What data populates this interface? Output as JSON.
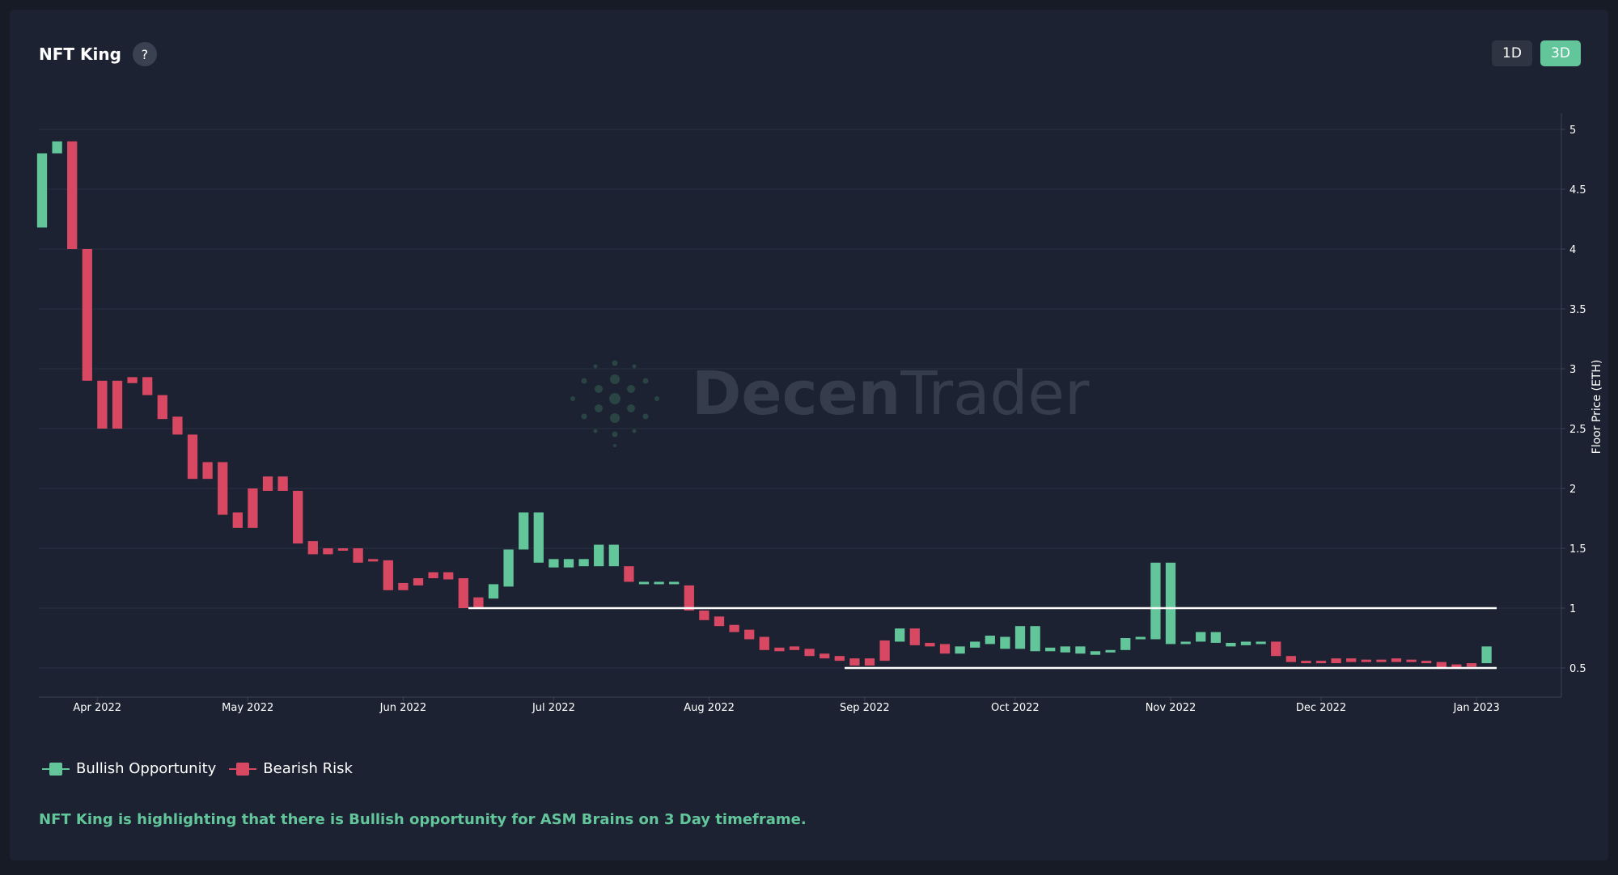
{
  "header": {
    "title": "NFT King",
    "help_icon": "?"
  },
  "timeframes": [
    {
      "label": "1D",
      "active": false
    },
    {
      "label": "3D",
      "active": true
    }
  ],
  "watermark": {
    "text_dark": "Decen",
    "text_light": "Trader"
  },
  "legend": [
    {
      "label": "Bullish Opportunity",
      "color": "#63c69a"
    },
    {
      "label": "Bearish Risk",
      "color": "#d94862"
    }
  ],
  "message": "NFT King is highlighting that there is Bullish opportunity for ASM Brains on 3 Day timeframe.",
  "colors": {
    "bullish": "#63c69a",
    "bearish": "#d94862",
    "level_line": "#ffffff",
    "grid": "#283043"
  },
  "chart_data": {
    "type": "bar",
    "ylabel": "Floor Price (ETH)",
    "ylim": [
      0.25,
      5.2
    ],
    "yticks": [
      0.5,
      1,
      1.5,
      2,
      2.5,
      3,
      3.5,
      4,
      4.5,
      5
    ],
    "ytick_labels": [
      "0.5",
      "1",
      "1.5",
      "2",
      "2.5",
      "3",
      "3.5",
      "4",
      "4.5",
      "5"
    ],
    "x_start": "2022-03-21",
    "x_end": "2023-01-10",
    "month_ticks": [
      {
        "date": "2022-04-01",
        "label": "Apr 2022"
      },
      {
        "date": "2022-05-01",
        "label": "May 2022"
      },
      {
        "date": "2022-06-01",
        "label": "Jun 2022"
      },
      {
        "date": "2022-07-01",
        "label": "Jul 2022"
      },
      {
        "date": "2022-08-01",
        "label": "Aug 2022"
      },
      {
        "date": "2022-09-01",
        "label": "Sep 2022"
      },
      {
        "date": "2022-10-01",
        "label": "Oct 2022"
      },
      {
        "date": "2022-11-01",
        "label": "Nov 2022"
      },
      {
        "date": "2022-12-01",
        "label": "Dec 2022"
      },
      {
        "date": "2023-01-01",
        "label": "Jan 2023"
      }
    ],
    "candles": [
      {
        "date": "2022-03-21",
        "open": 4.18,
        "close": 4.8,
        "signal": "bullish"
      },
      {
        "date": "2022-03-24",
        "open": 4.8,
        "close": 4.9,
        "signal": "bullish"
      },
      {
        "date": "2022-03-27",
        "open": 4.9,
        "close": 4.0,
        "signal": "bearish"
      },
      {
        "date": "2022-03-30",
        "open": 4.0,
        "close": 2.9,
        "signal": "bearish"
      },
      {
        "date": "2022-04-02",
        "open": 2.9,
        "close": 2.5,
        "signal": "bearish"
      },
      {
        "date": "2022-04-05",
        "open": 2.9,
        "close": 2.5,
        "signal": "bearish"
      },
      {
        "date": "2022-04-08",
        "open": 2.93,
        "close": 2.88,
        "signal": "bearish"
      },
      {
        "date": "2022-04-11",
        "open": 2.93,
        "close": 2.78,
        "signal": "bearish"
      },
      {
        "date": "2022-04-14",
        "open": 2.78,
        "close": 2.58,
        "signal": "bearish"
      },
      {
        "date": "2022-04-17",
        "open": 2.6,
        "close": 2.45,
        "signal": "bearish"
      },
      {
        "date": "2022-04-20",
        "open": 2.45,
        "close": 2.08,
        "signal": "bearish"
      },
      {
        "date": "2022-04-23",
        "open": 2.22,
        "close": 2.08,
        "signal": "bearish"
      },
      {
        "date": "2022-04-26",
        "open": 2.22,
        "close": 1.78,
        "signal": "bearish"
      },
      {
        "date": "2022-04-29",
        "open": 1.8,
        "close": 1.67,
        "signal": "bearish"
      },
      {
        "date": "2022-05-02",
        "open": 2.0,
        "close": 1.67,
        "signal": "bearish"
      },
      {
        "date": "2022-05-05",
        "open": 2.1,
        "close": 1.98,
        "signal": "bearish"
      },
      {
        "date": "2022-05-08",
        "open": 2.1,
        "close": 1.98,
        "signal": "bearish"
      },
      {
        "date": "2022-05-11",
        "open": 1.98,
        "close": 1.54,
        "signal": "bearish"
      },
      {
        "date": "2022-05-14",
        "open": 1.56,
        "close": 1.45,
        "signal": "bearish"
      },
      {
        "date": "2022-05-17",
        "open": 1.5,
        "close": 1.45,
        "signal": "bearish"
      },
      {
        "date": "2022-05-20",
        "open": 1.5,
        "close": 1.49,
        "signal": "bearish"
      },
      {
        "date": "2022-05-23",
        "open": 1.5,
        "close": 1.38,
        "signal": "bearish"
      },
      {
        "date": "2022-05-26",
        "open": 1.41,
        "close": 1.39,
        "signal": "bearish"
      },
      {
        "date": "2022-05-29",
        "open": 1.4,
        "close": 1.15,
        "signal": "bearish"
      },
      {
        "date": "2022-06-01",
        "open": 1.21,
        "close": 1.15,
        "signal": "bearish"
      },
      {
        "date": "2022-06-04",
        "open": 1.25,
        "close": 1.19,
        "signal": "bearish"
      },
      {
        "date": "2022-06-07",
        "open": 1.3,
        "close": 1.25,
        "signal": "bearish"
      },
      {
        "date": "2022-06-10",
        "open": 1.3,
        "close": 1.24,
        "signal": "bearish"
      },
      {
        "date": "2022-06-13",
        "open": 1.25,
        "close": 1.0,
        "signal": "bearish"
      },
      {
        "date": "2022-06-16",
        "open": 1.09,
        "close": 1.0,
        "signal": "bearish"
      },
      {
        "date": "2022-06-19",
        "open": 1.08,
        "close": 1.2,
        "signal": "bullish"
      },
      {
        "date": "2022-06-22",
        "open": 1.18,
        "close": 1.49,
        "signal": "bullish"
      },
      {
        "date": "2022-06-25",
        "open": 1.49,
        "close": 1.8,
        "signal": "bullish"
      },
      {
        "date": "2022-06-28",
        "open": 1.8,
        "close": 1.38,
        "signal": "bullish"
      },
      {
        "date": "2022-07-01",
        "open": 1.34,
        "close": 1.41,
        "signal": "bullish"
      },
      {
        "date": "2022-07-04",
        "open": 1.34,
        "close": 1.41,
        "signal": "bullish"
      },
      {
        "date": "2022-07-07",
        "open": 1.35,
        "close": 1.41,
        "signal": "bullish"
      },
      {
        "date": "2022-07-10",
        "open": 1.35,
        "close": 1.53,
        "signal": "bullish"
      },
      {
        "date": "2022-07-13",
        "open": 1.53,
        "close": 1.35,
        "signal": "bullish"
      },
      {
        "date": "2022-07-16",
        "open": 1.35,
        "close": 1.22,
        "signal": "bearish"
      },
      {
        "date": "2022-07-19",
        "open": 1.22,
        "close": 1.21,
        "signal": "bullish"
      },
      {
        "date": "2022-07-22",
        "open": 1.22,
        "close": 1.21,
        "signal": "bullish"
      },
      {
        "date": "2022-07-25",
        "open": 1.22,
        "close": 1.2,
        "signal": "bullish"
      },
      {
        "date": "2022-07-28",
        "open": 1.19,
        "close": 0.98,
        "signal": "bearish"
      },
      {
        "date": "2022-07-31",
        "open": 0.98,
        "close": 0.9,
        "signal": "bearish"
      },
      {
        "date": "2022-08-03",
        "open": 0.93,
        "close": 0.85,
        "signal": "bearish"
      },
      {
        "date": "2022-08-06",
        "open": 0.86,
        "close": 0.8,
        "signal": "bearish"
      },
      {
        "date": "2022-08-09",
        "open": 0.82,
        "close": 0.74,
        "signal": "bearish"
      },
      {
        "date": "2022-08-12",
        "open": 0.76,
        "close": 0.65,
        "signal": "bearish"
      },
      {
        "date": "2022-08-15",
        "open": 0.67,
        "close": 0.64,
        "signal": "bearish"
      },
      {
        "date": "2022-08-18",
        "open": 0.68,
        "close": 0.65,
        "signal": "bearish"
      },
      {
        "date": "2022-08-21",
        "open": 0.66,
        "close": 0.6,
        "signal": "bearish"
      },
      {
        "date": "2022-08-24",
        "open": 0.62,
        "close": 0.58,
        "signal": "bearish"
      },
      {
        "date": "2022-08-27",
        "open": 0.6,
        "close": 0.56,
        "signal": "bearish"
      },
      {
        "date": "2022-08-30",
        "open": 0.58,
        "close": 0.52,
        "signal": "bearish"
      },
      {
        "date": "2022-09-02",
        "open": 0.58,
        "close": 0.52,
        "signal": "bearish"
      },
      {
        "date": "2022-09-05",
        "open": 0.73,
        "close": 0.56,
        "signal": "bearish"
      },
      {
        "date": "2022-09-08",
        "open": 0.72,
        "close": 0.83,
        "signal": "bullish"
      },
      {
        "date": "2022-09-11",
        "open": 0.83,
        "close": 0.69,
        "signal": "bearish"
      },
      {
        "date": "2022-09-14",
        "open": 0.71,
        "close": 0.68,
        "signal": "bearish"
      },
      {
        "date": "2022-09-17",
        "open": 0.7,
        "close": 0.62,
        "signal": "bearish"
      },
      {
        "date": "2022-09-20",
        "open": 0.62,
        "close": 0.68,
        "signal": "bullish"
      },
      {
        "date": "2022-09-23",
        "open": 0.67,
        "close": 0.72,
        "signal": "bullish"
      },
      {
        "date": "2022-09-26",
        "open": 0.7,
        "close": 0.77,
        "signal": "bullish"
      },
      {
        "date": "2022-09-29",
        "open": 0.66,
        "close": 0.76,
        "signal": "bullish"
      },
      {
        "date": "2022-10-02",
        "open": 0.66,
        "close": 0.85,
        "signal": "bullish"
      },
      {
        "date": "2022-10-05",
        "open": 0.85,
        "close": 0.64,
        "signal": "bullish"
      },
      {
        "date": "2022-10-08",
        "open": 0.64,
        "close": 0.67,
        "signal": "bullish"
      },
      {
        "date": "2022-10-11",
        "open": 0.63,
        "close": 0.68,
        "signal": "bullish"
      },
      {
        "date": "2022-10-14",
        "open": 0.62,
        "close": 0.68,
        "signal": "bullish"
      },
      {
        "date": "2022-10-17",
        "open": 0.61,
        "close": 0.64,
        "signal": "bullish"
      },
      {
        "date": "2022-10-20",
        "open": 0.64,
        "close": 0.65,
        "signal": "bullish"
      },
      {
        "date": "2022-10-23",
        "open": 0.65,
        "close": 0.75,
        "signal": "bullish"
      },
      {
        "date": "2022-10-26",
        "open": 0.74,
        "close": 0.76,
        "signal": "bullish"
      },
      {
        "date": "2022-10-29",
        "open": 0.74,
        "close": 1.38,
        "signal": "bullish"
      },
      {
        "date": "2022-11-01",
        "open": 1.38,
        "close": 0.7,
        "signal": "bullish"
      },
      {
        "date": "2022-11-04",
        "open": 0.7,
        "close": 0.72,
        "signal": "bullish"
      },
      {
        "date": "2022-11-07",
        "open": 0.72,
        "close": 0.8,
        "signal": "bullish"
      },
      {
        "date": "2022-11-10",
        "open": 0.71,
        "close": 0.8,
        "signal": "bullish"
      },
      {
        "date": "2022-11-13",
        "open": 0.68,
        "close": 0.71,
        "signal": "bullish"
      },
      {
        "date": "2022-11-16",
        "open": 0.69,
        "close": 0.72,
        "signal": "bullish"
      },
      {
        "date": "2022-11-19",
        "open": 0.7,
        "close": 0.72,
        "signal": "bullish"
      },
      {
        "date": "2022-11-22",
        "open": 0.72,
        "close": 0.6,
        "signal": "bearish"
      },
      {
        "date": "2022-11-25",
        "open": 0.6,
        "close": 0.55,
        "signal": "bearish"
      },
      {
        "date": "2022-11-28",
        "open": 0.56,
        "close": 0.54,
        "signal": "bearish"
      },
      {
        "date": "2022-12-01",
        "open": 0.56,
        "close": 0.54,
        "signal": "bearish"
      },
      {
        "date": "2022-12-04",
        "open": 0.58,
        "close": 0.54,
        "signal": "bearish"
      },
      {
        "date": "2022-12-07",
        "open": 0.58,
        "close": 0.55,
        "signal": "bearish"
      },
      {
        "date": "2022-12-10",
        "open": 0.57,
        "close": 0.55,
        "signal": "bearish"
      },
      {
        "date": "2022-12-13",
        "open": 0.57,
        "close": 0.55,
        "signal": "bearish"
      },
      {
        "date": "2022-12-16",
        "open": 0.58,
        "close": 0.55,
        "signal": "bearish"
      },
      {
        "date": "2022-12-19",
        "open": 0.57,
        "close": 0.55,
        "signal": "bearish"
      },
      {
        "date": "2022-12-22",
        "open": 0.56,
        "close": 0.55,
        "signal": "bearish"
      },
      {
        "date": "2022-12-25",
        "open": 0.55,
        "close": 0.5,
        "signal": "bearish"
      },
      {
        "date": "2022-12-28",
        "open": 0.53,
        "close": 0.5,
        "signal": "bearish"
      },
      {
        "date": "2022-12-31",
        "open": 0.54,
        "close": 0.51,
        "signal": "bearish"
      },
      {
        "date": "2023-01-03",
        "open": 0.54,
        "close": 0.68,
        "signal": "bullish"
      }
    ],
    "levels": [
      {
        "value": 1.0,
        "from": "2022-06-14",
        "to": "2023-01-05"
      },
      {
        "value": 0.5,
        "from": "2022-08-28",
        "to": "2023-01-05"
      }
    ]
  }
}
